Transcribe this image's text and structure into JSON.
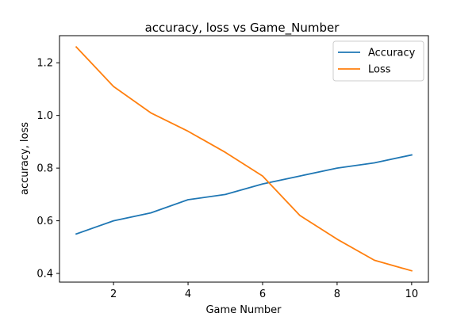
{
  "chart_data": {
    "type": "line",
    "title": "accuracy, loss vs Game_Number",
    "xlabel": "Game Number",
    "ylabel": "accuracy, loss",
    "x": [
      1,
      2,
      3,
      4,
      5,
      6,
      7,
      8,
      9,
      10
    ],
    "xlim": [
      0.55,
      10.45
    ],
    "ylim": [
      0.367,
      1.303
    ],
    "xticks": [
      2,
      4,
      6,
      8,
      10
    ],
    "yticks": [
      0.4,
      0.6,
      0.8,
      1.0,
      1.2
    ],
    "xtick_labels": [
      "2",
      "4",
      "6",
      "8",
      "10"
    ],
    "ytick_labels": [
      "0.4",
      "0.6",
      "0.8",
      "1.0",
      "1.2"
    ],
    "grid": false,
    "legend_position": "top-right",
    "series": [
      {
        "name": "Accuracy",
        "color": "#1f77b4",
        "values": [
          0.55,
          0.6,
          0.63,
          0.68,
          0.7,
          0.74,
          0.77,
          0.8,
          0.82,
          0.85
        ]
      },
      {
        "name": "Loss",
        "color": "#ff7f0e",
        "values": [
          1.26,
          1.11,
          1.01,
          0.94,
          0.86,
          0.77,
          0.62,
          0.53,
          0.45,
          0.41
        ]
      }
    ]
  }
}
